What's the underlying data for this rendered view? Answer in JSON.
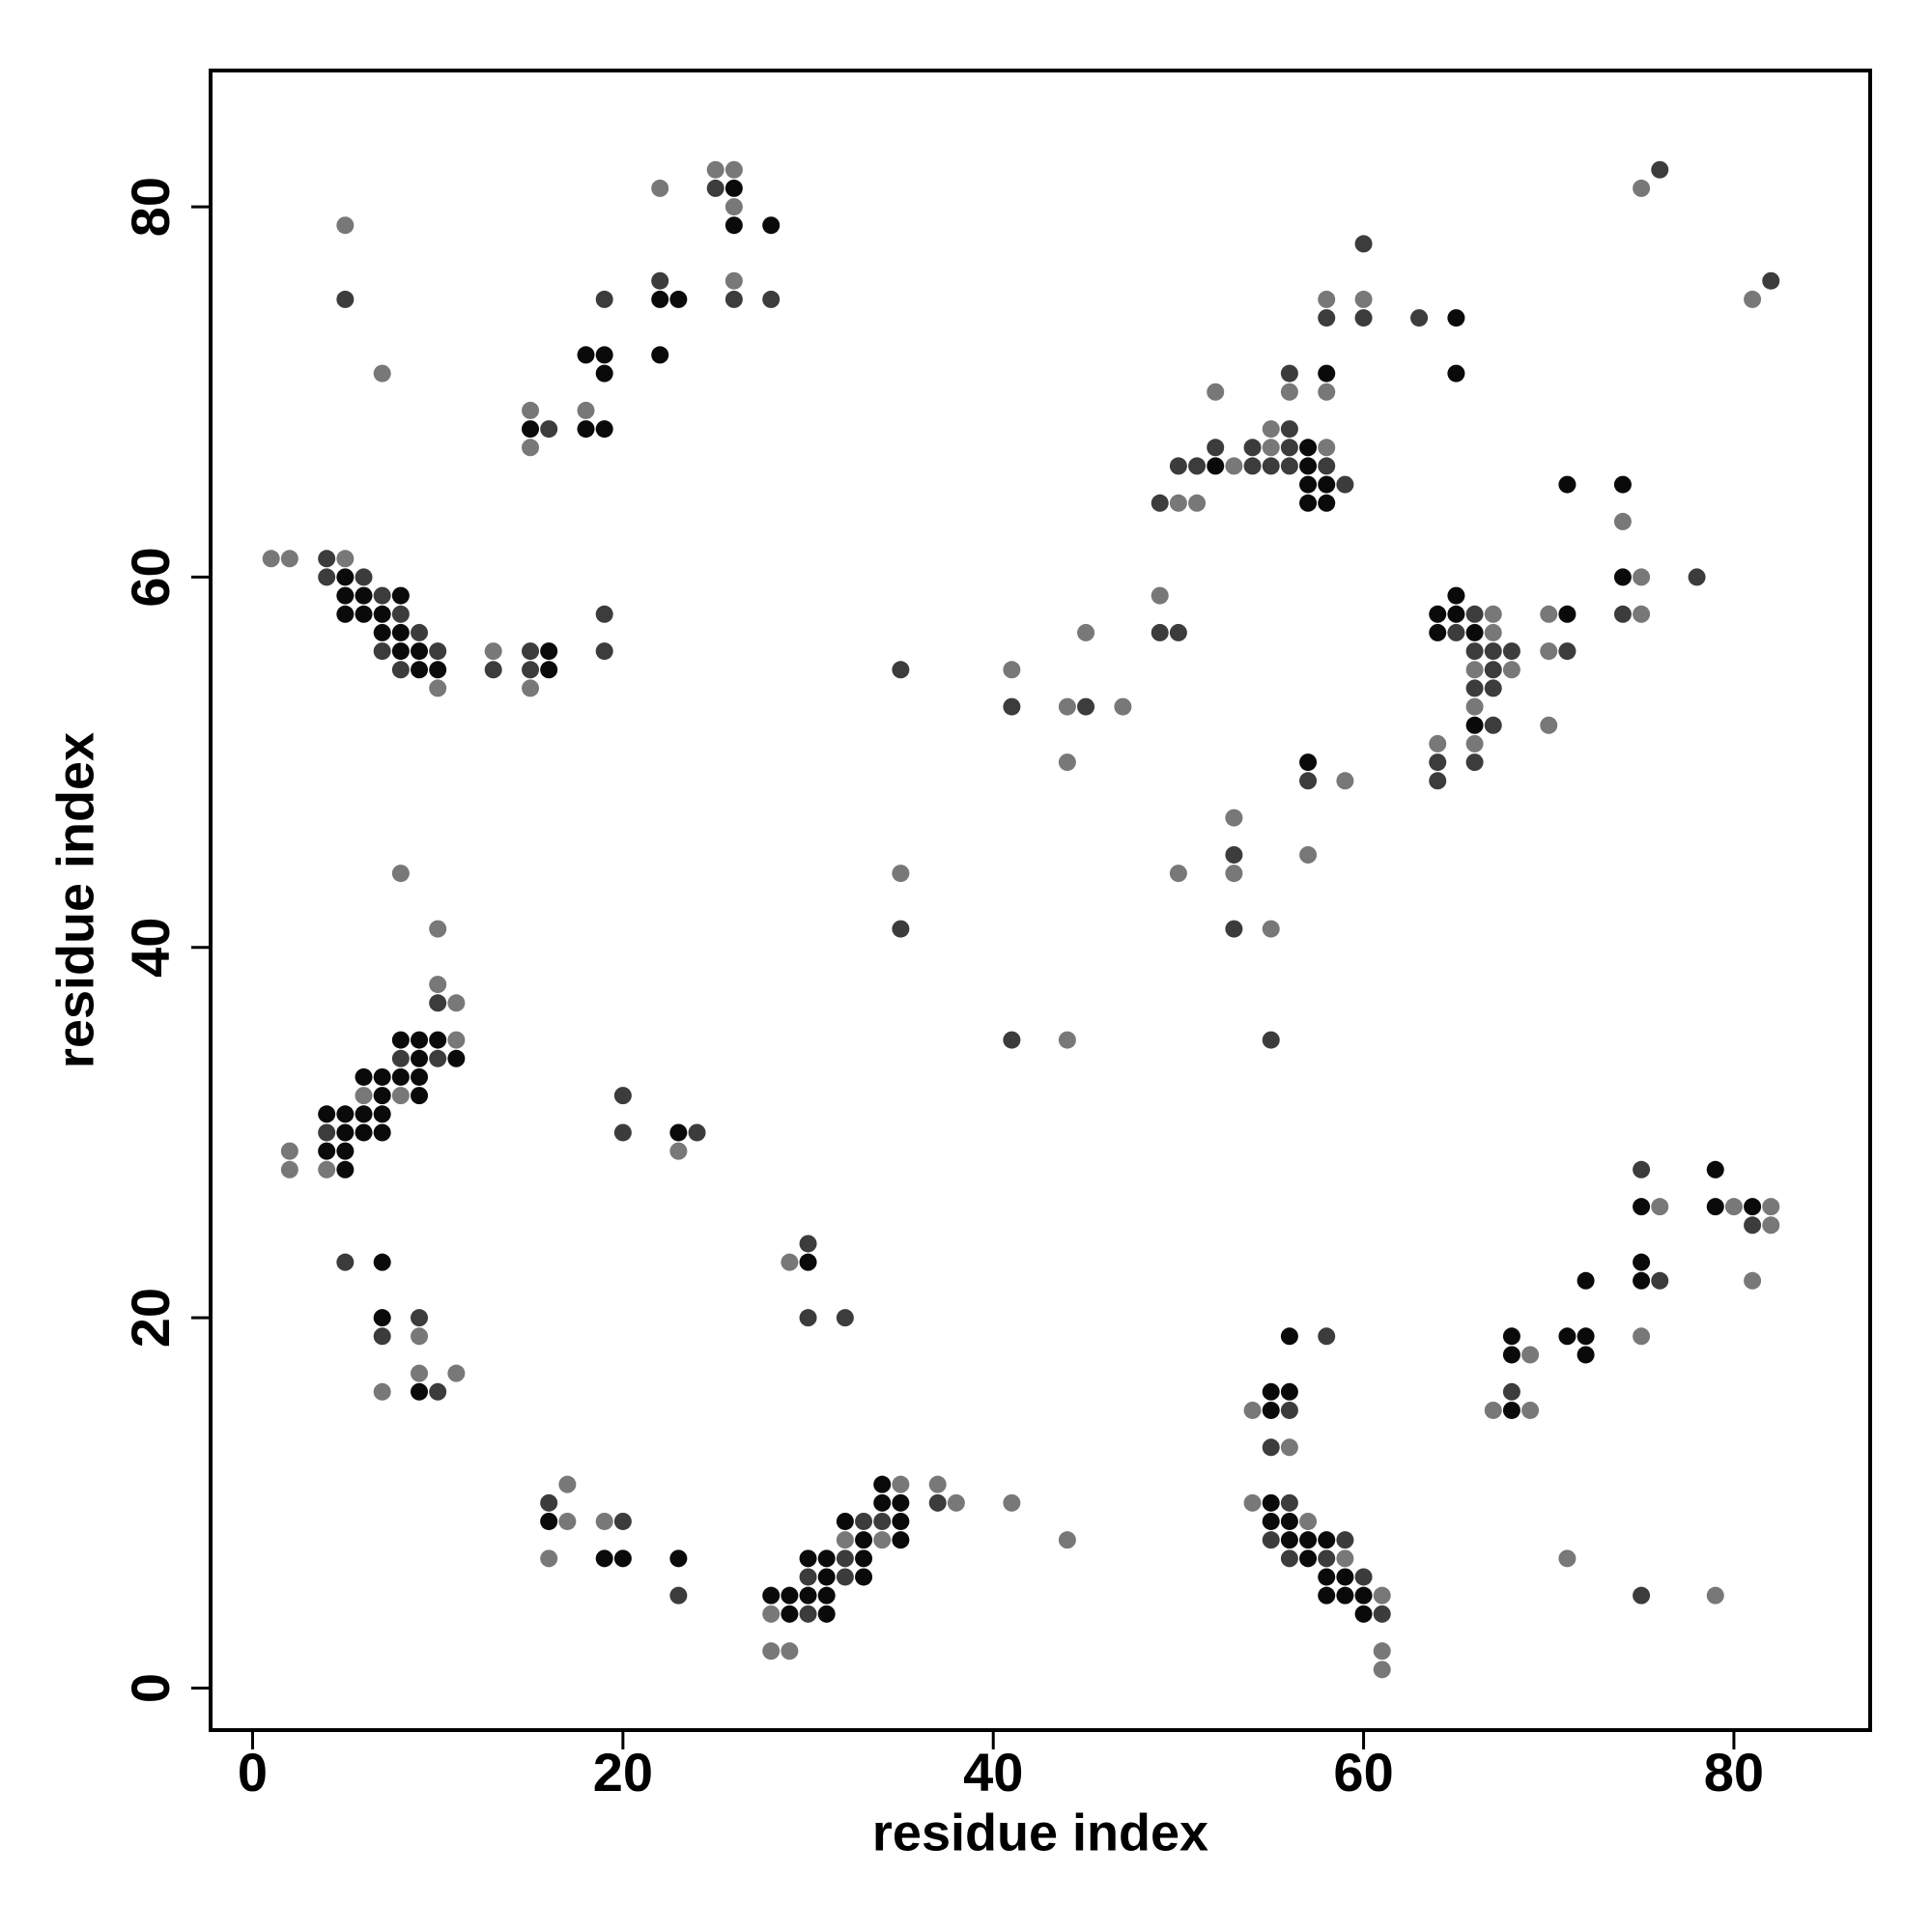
{
  "chart_data": {
    "type": "scatter",
    "xlabel": "residue index",
    "ylabel": "residue index",
    "xlim": [
      -2.27,
      87.36
    ],
    "ylim": [
      -2.27,
      87.36
    ],
    "xticks": [
      0,
      20,
      40,
      60,
      80
    ],
    "yticks": [
      0,
      20,
      40,
      60,
      80
    ],
    "grid": false,
    "series": [
      {
        "color": "#787878",
        "x": [
          5,
          7,
          1,
          2,
          5,
          10,
          13,
          15,
          15,
          15,
          18,
          22,
          25,
          26,
          26,
          26,
          8,
          10,
          10,
          11,
          11,
          6,
          8,
          2,
          2,
          4,
          23,
          9,
          7,
          9,
          11,
          29,
          17,
          17,
          16,
          19,
          28,
          28,
          29,
          32,
          34,
          35,
          37,
          38,
          41,
          44,
          35,
          41,
          44,
          47,
          45,
          44,
          44,
          49,
          50,
          51,
          53,
          55,
          55,
          52,
          56,
          58,
          58,
          58,
          60,
          53,
          53,
          50,
          55,
          57,
          59,
          67,
          67,
          66,
          68,
          66,
          64,
          66,
          70,
          70,
          70,
          74,
          75,
          75,
          75,
          81,
          54,
          56,
          54,
          57,
          59,
          61,
          61,
          61,
          67,
          69,
          69,
          71,
          76,
          75,
          79,
          80,
          82,
          82,
          81
        ],
        "values": [
          79,
          71,
          61,
          61,
          61,
          54,
          56,
          54,
          69,
          67,
          69,
          81,
          82,
          82,
          80,
          76,
          44,
          41,
          38,
          37,
          35,
          32,
          32,
          29,
          28,
          28,
          29,
          19,
          16,
          17,
          17,
          23,
          11,
          9,
          7,
          9,
          4,
          2,
          2,
          8,
          8,
          11,
          11,
          10,
          10,
          8,
          44,
          55,
          53,
          53,
          57,
          50,
          35,
          59,
          64,
          64,
          66,
          67,
          68,
          70,
          70,
          70,
          67,
          75,
          75,
          47,
          44,
          44,
          41,
          45,
          49,
          58,
          57,
          55,
          55,
          53,
          51,
          51,
          58,
          56,
          52,
          63,
          60,
          58,
          81,
          75,
          15,
          13,
          10,
          9,
          7,
          5,
          2,
          1,
          15,
          15,
          18,
          7,
          26,
          19,
          5,
          26,
          26,
          25,
          22
        ]
      },
      {
        "color": "#3c3c3c",
        "x": [
          5,
          4,
          4,
          6,
          7,
          8,
          9,
          7,
          10,
          8,
          13,
          15,
          15,
          19,
          19,
          16,
          19,
          22,
          25,
          26,
          28,
          10,
          8,
          10,
          4,
          20,
          20,
          24,
          5,
          7,
          9,
          10,
          30,
          30,
          32,
          16,
          20,
          23,
          30,
          30,
          32,
          32,
          33,
          34,
          37,
          35,
          35,
          41,
          45,
          41,
          49,
          50,
          49,
          50,
          51,
          54,
          55,
          56,
          58,
          52,
          54,
          56,
          56,
          56,
          59,
          58,
          60,
          60,
          63,
          53,
          53,
          55,
          57,
          66,
          65,
          66,
          67,
          68,
          67,
          66,
          67,
          67,
          64,
          66,
          64,
          71,
          74,
          78,
          76,
          82,
          56,
          55,
          58,
          56,
          55,
          59,
          56,
          58,
          60,
          61,
          68,
          75,
          76,
          75,
          81
        ],
        "values": [
          75,
          61,
          60,
          60,
          59,
          58,
          57,
          56,
          56,
          55,
          55,
          56,
          55,
          58,
          56,
          68,
          75,
          76,
          81,
          75,
          75,
          37,
          34,
          34,
          30,
          32,
          30,
          30,
          23,
          19,
          20,
          16,
          24,
          20,
          20,
          10,
          9,
          5,
          4,
          6,
          7,
          6,
          9,
          9,
          10,
          55,
          41,
          53,
          53,
          35,
          57,
          57,
          64,
          66,
          66,
          66,
          66,
          66,
          66,
          67,
          67,
          67,
          68,
          71,
          65,
          74,
          78,
          74,
          74,
          45,
          41,
          35,
          49,
          58,
          57,
          56,
          56,
          56,
          55,
          54,
          54,
          52,
          50,
          50,
          49,
          56,
          58,
          60,
          82,
          76,
          15,
          13,
          19,
          10,
          8,
          8,
          7,
          7,
          6,
          4,
          16,
          28,
          22,
          5,
          25
        ]
      },
      {
        "color": "#0a0a0a",
        "x": [
          5,
          5,
          6,
          8,
          5,
          6,
          7,
          7,
          8,
          8,
          9,
          9,
          10,
          16,
          16,
          15,
          18,
          19,
          18,
          19,
          19,
          22,
          23,
          22,
          26,
          26,
          28,
          8,
          9,
          10,
          9,
          11,
          6,
          7,
          8,
          9,
          7,
          9,
          4,
          5,
          6,
          7,
          5,
          6,
          7,
          4,
          5,
          5,
          23,
          7,
          7,
          9,
          30,
          16,
          19,
          20,
          23,
          28,
          29,
          30,
          31,
          29,
          31,
          30,
          31,
          31,
          32,
          33,
          33,
          33,
          34,
          34,
          35,
          35,
          35,
          52,
          57,
          57,
          58,
          57,
          58,
          57,
          58,
          65,
          65,
          57,
          64,
          65,
          65,
          64,
          66,
          66,
          71,
          71,
          74,
          74,
          55,
          56,
          55,
          56,
          55,
          55,
          56,
          56,
          57,
          58,
          57,
          58,
          59,
          58,
          59,
          60,
          60,
          68,
          68,
          68,
          71,
          72,
          72,
          72,
          75,
          75,
          75,
          79,
          79,
          81
        ],
        "values": [
          60,
          59,
          59,
          59,
          58,
          58,
          58,
          57,
          57,
          56,
          56,
          55,
          55,
          56,
          55,
          68,
          68,
          68,
          72,
          72,
          71,
          75,
          75,
          72,
          81,
          79,
          79,
          35,
          35,
          35,
          34,
          34,
          33,
          33,
          33,
          33,
          32,
          32,
          31,
          31,
          31,
          31,
          30,
          30,
          30,
          29,
          29,
          28,
          30,
          23,
          20,
          16,
          23,
          9,
          7,
          7,
          7,
          5,
          5,
          5,
          5,
          4,
          4,
          7,
          7,
          6,
          9,
          8,
          7,
          6,
          11,
          10,
          10,
          9,
          8,
          66,
          66,
          67,
          71,
          65,
          65,
          64,
          64,
          74,
          71,
          50,
          58,
          58,
          59,
          57,
          57,
          52,
          58,
          65,
          65,
          60,
          16,
          16,
          15,
          19,
          10,
          9,
          9,
          8,
          8,
          8,
          7,
          6,
          6,
          5,
          5,
          5,
          4,
          15,
          18,
          19,
          19,
          19,
          18,
          22,
          26,
          23,
          22,
          28,
          26,
          26
        ]
      }
    ]
  }
}
